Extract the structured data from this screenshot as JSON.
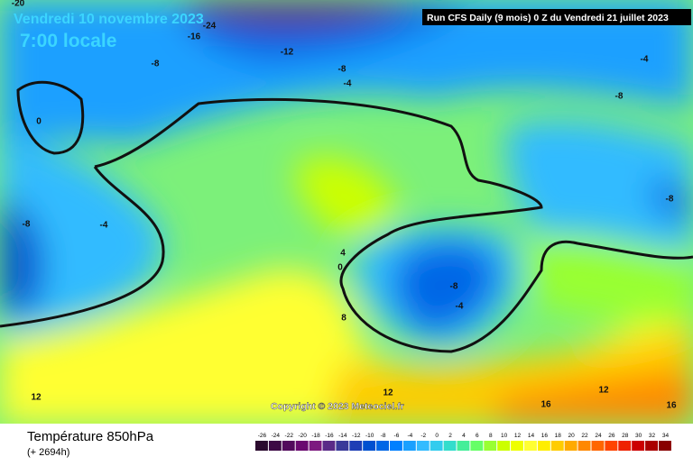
{
  "header": {
    "date": "Vendredi 10 novembre 2023",
    "time": "7:00 locale",
    "run": "Run CFS Daily (9 mois) 0 Z du Vendredi 21 juillet 2023"
  },
  "map": {
    "copyright": "Copyright © 2023 Meteociel.fr",
    "contour_labels": [
      -20,
      -24,
      -16,
      -12,
      -8,
      -8,
      -4,
      -4,
      -8,
      0,
      -8,
      -4,
      -8,
      4,
      0,
      -8,
      -4,
      8,
      12,
      12,
      12,
      16,
      16
    ]
  },
  "footer": {
    "title": "Température 850hPa",
    "lead": "(+ 2694h)"
  },
  "colorbar": {
    "ticks": [
      -26,
      -24,
      -22,
      -20,
      -18,
      -16,
      -14,
      -12,
      -10,
      -8,
      -6,
      -4,
      -2,
      0,
      2,
      4,
      6,
      8,
      10,
      12,
      14,
      16,
      18,
      20,
      22,
      24,
      26,
      28,
      30,
      32,
      34
    ],
    "colors": [
      "#2b0a2e",
      "#3d0a45",
      "#520a5c",
      "#6a0a70",
      "#7d1a80",
      "#5a2a88",
      "#3a3a99",
      "#1f3fb5",
      "#0050d0",
      "#0066e6",
      "#0080ff",
      "#1aa0ff",
      "#33bbff",
      "#33ccee",
      "#33ddcc",
      "#44ee99",
      "#66ff66",
      "#99ff33",
      "#ccff00",
      "#eeff00",
      "#ffff33",
      "#ffee00",
      "#ffcc00",
      "#ffaa00",
      "#ff8800",
      "#ff6600",
      "#ff4400",
      "#ee2200",
      "#cc0000",
      "#aa0000",
      "#880000"
    ]
  }
}
